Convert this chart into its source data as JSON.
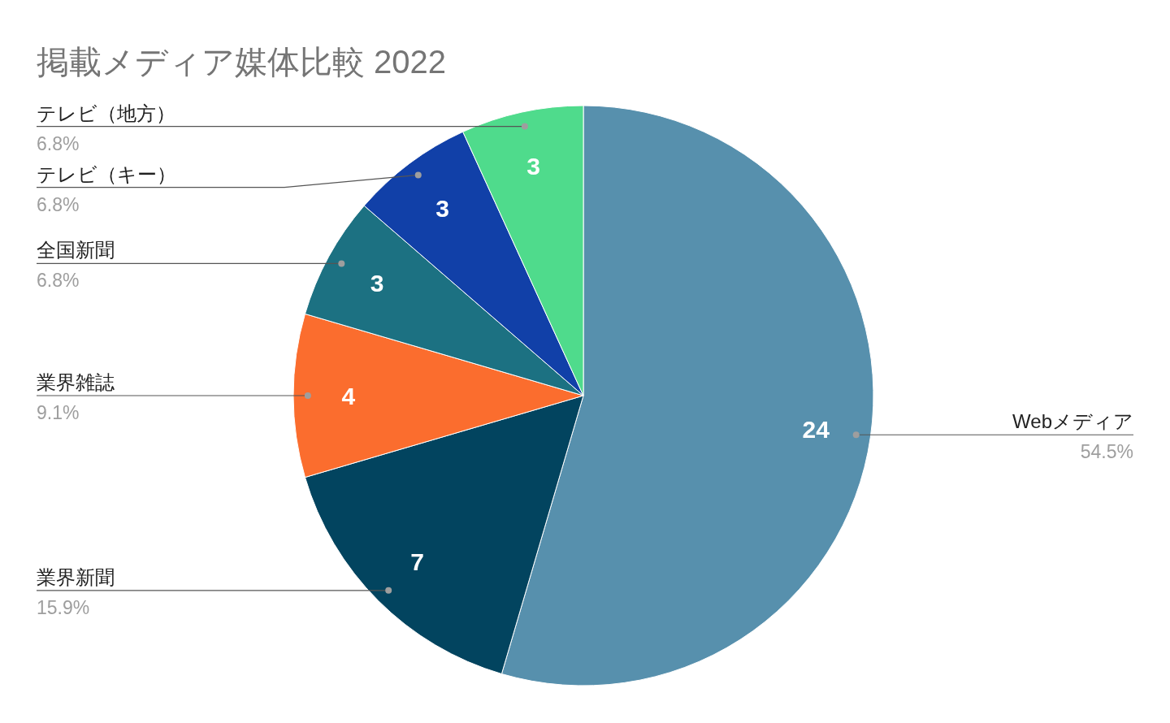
{
  "chart_data": {
    "type": "pie",
    "title": "掲載メディア媒体比較 2022",
    "categories": [
      "Webメディア",
      "業界新聞",
      "業界雑誌",
      "全国新聞",
      "テレビ（キー）",
      "テレビ（地方）"
    ],
    "values": [
      24,
      7,
      4,
      3,
      3,
      3
    ],
    "colors": [
      "#5790ad",
      "#02445f",
      "#fb6d2e",
      "#1c7182",
      "#1140a8",
      "#4fdb8c"
    ],
    "data_labels": true,
    "annotations": [
      "54.5%",
      "15.9%",
      "9.1%",
      "6.8%",
      "6.8%",
      "6.8%"
    ]
  }
}
